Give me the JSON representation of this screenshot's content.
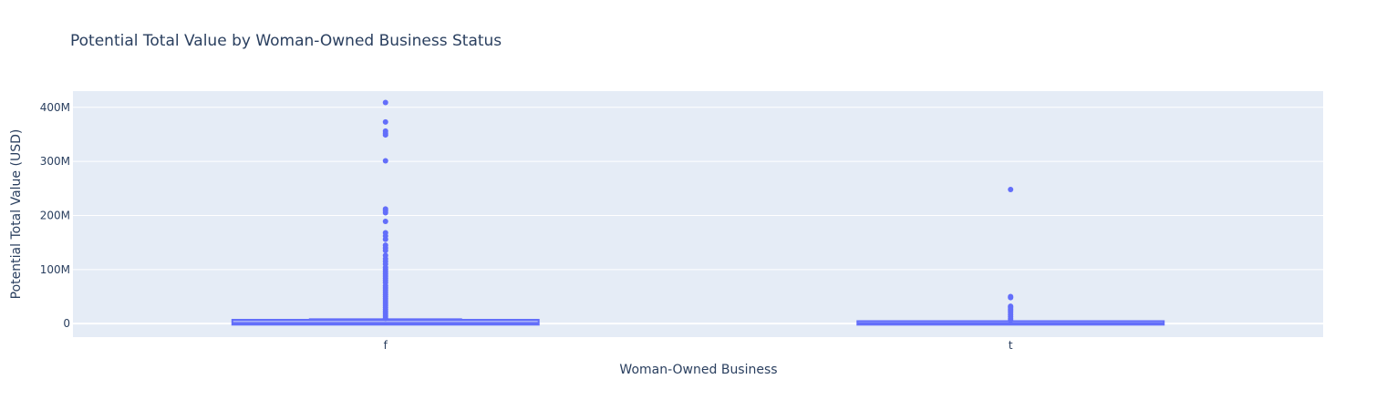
{
  "chart_data": {
    "type": "box",
    "title": "Potential Total Value by Woman-Owned Business Status",
    "xlabel": "Woman-Owned Business",
    "ylabel": "Potential Total Value (USD)",
    "categories": [
      "f",
      "t"
    ],
    "ylim": [
      -25000000,
      430000000
    ],
    "yticks": [
      0,
      100000000,
      200000000,
      300000000,
      400000000
    ],
    "ytick_labels": [
      "0",
      "100M",
      "200M",
      "300M",
      "400M"
    ],
    "grid": true,
    "legend": "none",
    "colors": {
      "box": "#636efa",
      "plot_bg": "#e5ecf6",
      "grid": "#ffffff",
      "text": "#2a3f5f"
    },
    "series": [
      {
        "category": "f",
        "min": 0,
        "q1": 100000,
        "median": 1000000,
        "q3": 5000000,
        "upper_fence": 8000000,
        "outliers": [
          409000000,
          373000000,
          356000000,
          352000000,
          349000000,
          301000000,
          212000000,
          209000000,
          205000000,
          189000000,
          168000000,
          162000000,
          156000000,
          145000000,
          140000000,
          135000000,
          126000000,
          120000000,
          115000000,
          110000000,
          104000000,
          100000000,
          96000000,
          92000000,
          88000000,
          84000000,
          80000000,
          76000000,
          70000000,
          66000000,
          62000000,
          58000000,
          54000000,
          50000000,
          46000000,
          42000000,
          38000000,
          34000000,
          30000000,
          26000000,
          22000000,
          18000000,
          14000000,
          10000000
        ]
      },
      {
        "category": "t",
        "min": 0,
        "q1": 50000,
        "median": 500000,
        "q3": 2500000,
        "upper_fence": 4500000,
        "outliers": [
          248000000,
          50000000,
          48000000,
          32000000,
          30000000,
          27000000,
          24000000,
          21000000,
          17000000,
          13000000,
          9000000,
          6000000
        ]
      }
    ]
  }
}
